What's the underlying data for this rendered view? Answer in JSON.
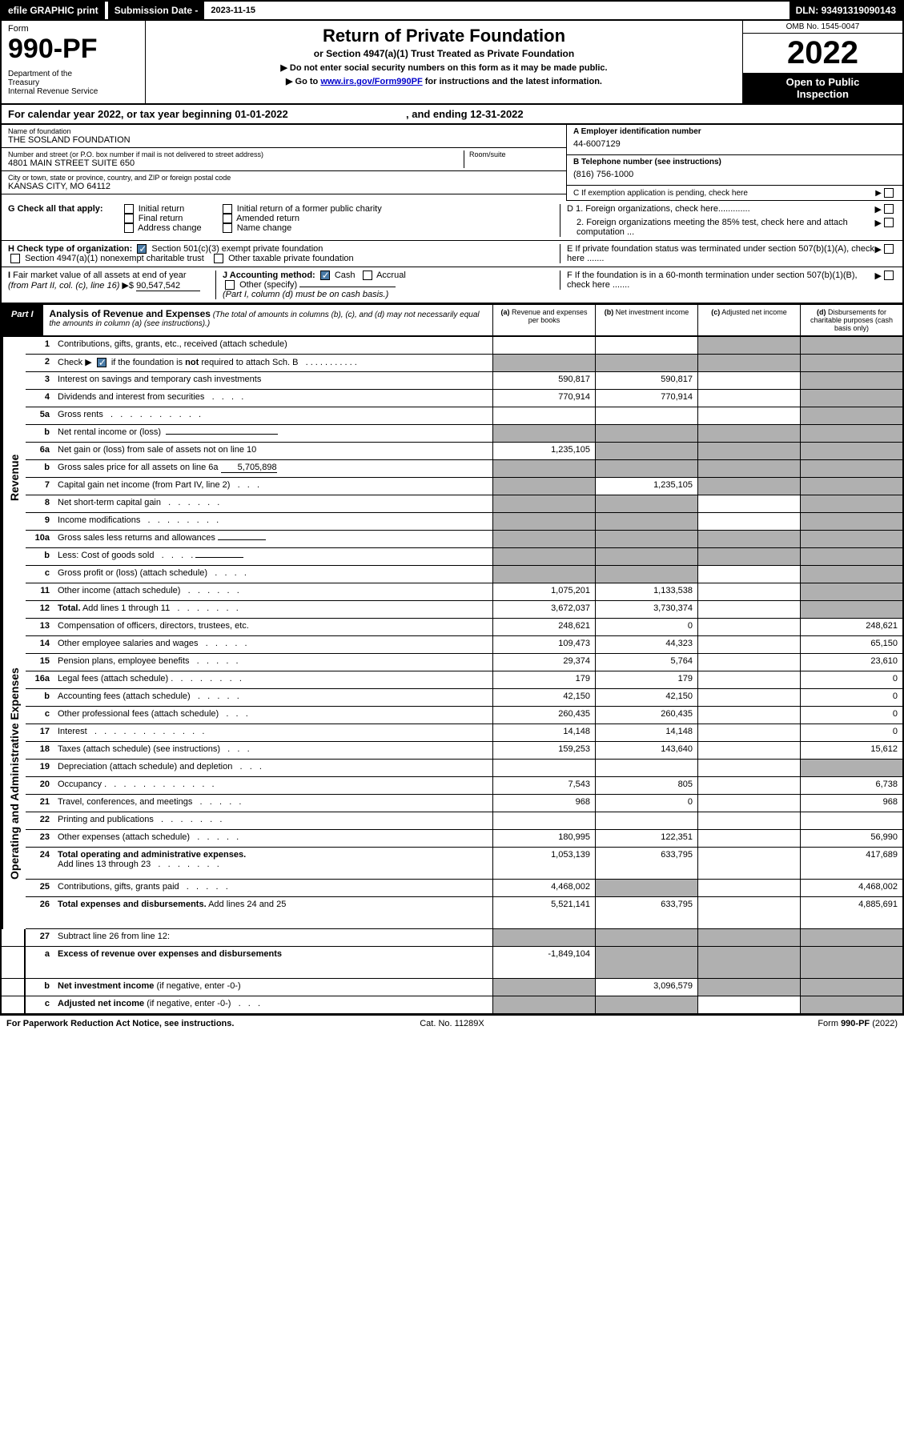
{
  "topbar": {
    "efile": "efile GRAPHIC print",
    "subdate_label": "Submission Date - ",
    "subdate": "2023-11-15",
    "dln_label": "DLN: ",
    "dln": "93491319090143"
  },
  "header": {
    "form_label": "Form",
    "form_no": "990-PF",
    "dept": "Department of the Treasury\nInternal Revenue Service",
    "title": "Return of Private Foundation",
    "subtitle": "or Section 4947(a)(1) Trust Treated as Private Foundation",
    "instr1": "▶ Do not enter social security numbers on this form as it may be made public.",
    "instr2": "▶ Go to www.irs.gov/Form990PF for instructions and the latest information.",
    "link": "www.irs.gov/Form990PF",
    "omb": "OMB No. 1545-0047",
    "year": "2022",
    "inspect": "Open to Public Inspection"
  },
  "cal": {
    "text": "For calendar year 2022, or tax year beginning 01-01-2022",
    "ending": ", and ending 12-31-2022"
  },
  "entity": {
    "name_label": "Name of foundation",
    "name": "THE SOSLAND FOUNDATION",
    "addr_label": "Number and street (or P.O. box number if mail is not delivered to street address)",
    "addr": "4801 MAIN STREET SUITE 650",
    "room_label": "Room/suite",
    "city_label": "City or town, state or province, country, and ZIP or foreign postal code",
    "city": "KANSAS CITY, MO  64112",
    "ein_label": "A Employer identification number",
    "ein": "44-6007129",
    "phone_label": "B Telephone number (see instructions)",
    "phone": "(816) 756-1000",
    "c_label": "C If exemption application is pending, check here",
    "d1": "D 1. Foreign organizations, check here.............",
    "d2": "2. Foreign organizations meeting the 85% test, check here and attach computation ...",
    "e_label": "E  If private foundation status was terminated under section 507(b)(1)(A), check here .......",
    "f_label": "F  If the foundation is in a 60-month termination under section 507(b)(1)(B), check here ......."
  },
  "g": {
    "label": "G Check all that apply:",
    "opts": [
      "Initial return",
      "Final return",
      "Address change",
      "Initial return of a former public charity",
      "Amended return",
      "Name change"
    ]
  },
  "h": {
    "label": "H Check type of organization:",
    "opt1": "Section 501(c)(3) exempt private foundation",
    "opt2": "Section 4947(a)(1) nonexempt charitable trust",
    "opt3": "Other taxable private foundation"
  },
  "i": {
    "label": "I Fair market value of all assets at end of year (from Part II, col. (c), line 16)",
    "amount": "90,547,542"
  },
  "j": {
    "label": "J Accounting method:",
    "cash": "Cash",
    "accrual": "Accrual",
    "other": "Other (specify)",
    "note": "(Part I, column (d) must be on cash basis.)"
  },
  "part1": {
    "label": "Part I",
    "title": "Analysis of Revenue and Expenses",
    "note": "(The total of amounts in columns (b), (c), and (d) may not necessarily equal the amounts in column (a) (see instructions).)",
    "col_a": "(a) Revenue and expenses per books",
    "col_b": "(b) Net investment income",
    "col_c": "(c) Adjusted net income",
    "col_d": "(d) Disbursements for charitable purposes (cash basis only)"
  },
  "sidelabels": {
    "rev": "Revenue",
    "exp": "Operating and Administrative Expenses"
  },
  "rows": [
    {
      "n": "1",
      "d": "shade",
      "a": "",
      "b": "",
      "c": "shade"
    },
    {
      "n": "2",
      "d": "shade",
      "a": "shade",
      "b": "shade",
      "c": "shade",
      "nobold": false,
      "checkbox": true
    },
    {
      "n": "3",
      "d": "shade",
      "a": "590,817",
      "b": "590,817",
      "c": ""
    },
    {
      "n": "4",
      "d": "shade",
      "a": "770,914",
      "b": "770,914",
      "c": ""
    },
    {
      "n": "5a",
      "d": "shade",
      "a": "",
      "b": "",
      "c": ""
    },
    {
      "n": "b",
      "d": "shade",
      "a": "shade",
      "b": "shade",
      "c": "shade",
      "underline": true
    },
    {
      "n": "6a",
      "d": "shade",
      "a": "1,235,105",
      "b": "shade",
      "c": "shade"
    },
    {
      "n": "b",
      "d": "shade",
      "a": "shade",
      "b": "shade",
      "c": "shade",
      "inline_val": "5,705,898"
    },
    {
      "n": "7",
      "d": "shade",
      "a": "shade",
      "b": "1,235,105",
      "c": "shade"
    },
    {
      "n": "8",
      "d": "shade",
      "a": "shade",
      "b": "shade",
      "c": ""
    },
    {
      "n": "9",
      "d": "shade",
      "a": "shade",
      "b": "shade",
      "c": ""
    },
    {
      "n": "10a",
      "d": "shade",
      "a": "shade",
      "b": "shade",
      "c": "shade",
      "underline": true
    },
    {
      "n": "b",
      "d": "shade",
      "a": "shade",
      "b": "shade",
      "c": "shade",
      "underline": true
    },
    {
      "n": "c",
      "d": "shade",
      "a": "shade",
      "b": "shade",
      "c": ""
    },
    {
      "n": "11",
      "d": "shade",
      "a": "1,075,201",
      "b": "1,133,538",
      "c": ""
    },
    {
      "n": "12",
      "d": "shade",
      "a": "3,672,037",
      "b": "3,730,374",
      "c": "",
      "bold": true
    }
  ],
  "exp_rows": [
    {
      "n": "13",
      "d": "248,621",
      "a": "248,621",
      "b": "0",
      "c": ""
    },
    {
      "n": "14",
      "d": "65,150",
      "a": "109,473",
      "b": "44,323",
      "c": ""
    },
    {
      "n": "15",
      "d": "23,610",
      "a": "29,374",
      "b": "5,764",
      "c": ""
    },
    {
      "n": "16a",
      "d": "0",
      "a": "179",
      "b": "179",
      "c": ""
    },
    {
      "n": "b",
      "d": "0",
      "a": "42,150",
      "b": "42,150",
      "c": ""
    },
    {
      "n": "c",
      "d": "0",
      "a": "260,435",
      "b": "260,435",
      "c": ""
    },
    {
      "n": "17",
      "d": "0",
      "a": "14,148",
      "b": "14,148",
      "c": ""
    },
    {
      "n": "18",
      "d": "15,612",
      "a": "159,253",
      "b": "143,640",
      "c": ""
    },
    {
      "n": "19",
      "d": "shade",
      "a": "",
      "b": "",
      "c": ""
    },
    {
      "n": "20",
      "d": "6,738",
      "a": "7,543",
      "b": "805",
      "c": ""
    },
    {
      "n": "21",
      "d": "968",
      "a": "968",
      "b": "0",
      "c": ""
    },
    {
      "n": "22",
      "d": "",
      "a": "",
      "b": "",
      "c": ""
    },
    {
      "n": "23",
      "d": "56,990",
      "a": "180,995",
      "b": "122,351",
      "c": ""
    },
    {
      "n": "24",
      "d": "417,689",
      "a": "1,053,139",
      "b": "633,795",
      "c": "",
      "bold": true,
      "tall": true
    },
    {
      "n": "25",
      "d": "4,468,002",
      "a": "4,468,002",
      "b": "shade",
      "c": ""
    },
    {
      "n": "26",
      "d": "4,885,691",
      "a": "5,521,141",
      "b": "633,795",
      "c": "",
      "bold": true,
      "tall": true
    }
  ],
  "bottom_rows": [
    {
      "n": "27",
      "d": "shade",
      "a": "shade",
      "b": "shade",
      "c": "shade"
    },
    {
      "n": "a",
      "d": "shade",
      "a": "-1,849,104",
      "b": "shade",
      "c": "shade",
      "bold": true
    },
    {
      "n": "b",
      "d": "shade",
      "a": "shade",
      "b": "3,096,579",
      "c": "shade",
      "bold": true
    },
    {
      "n": "c",
      "d": "shade",
      "a": "shade",
      "b": "shade",
      "c": "",
      "bold": true
    }
  ],
  "footer": {
    "left": "For Paperwork Reduction Act Notice, see instructions.",
    "mid": "Cat. No. 11289X",
    "right": "Form 990-PF (2022)"
  }
}
